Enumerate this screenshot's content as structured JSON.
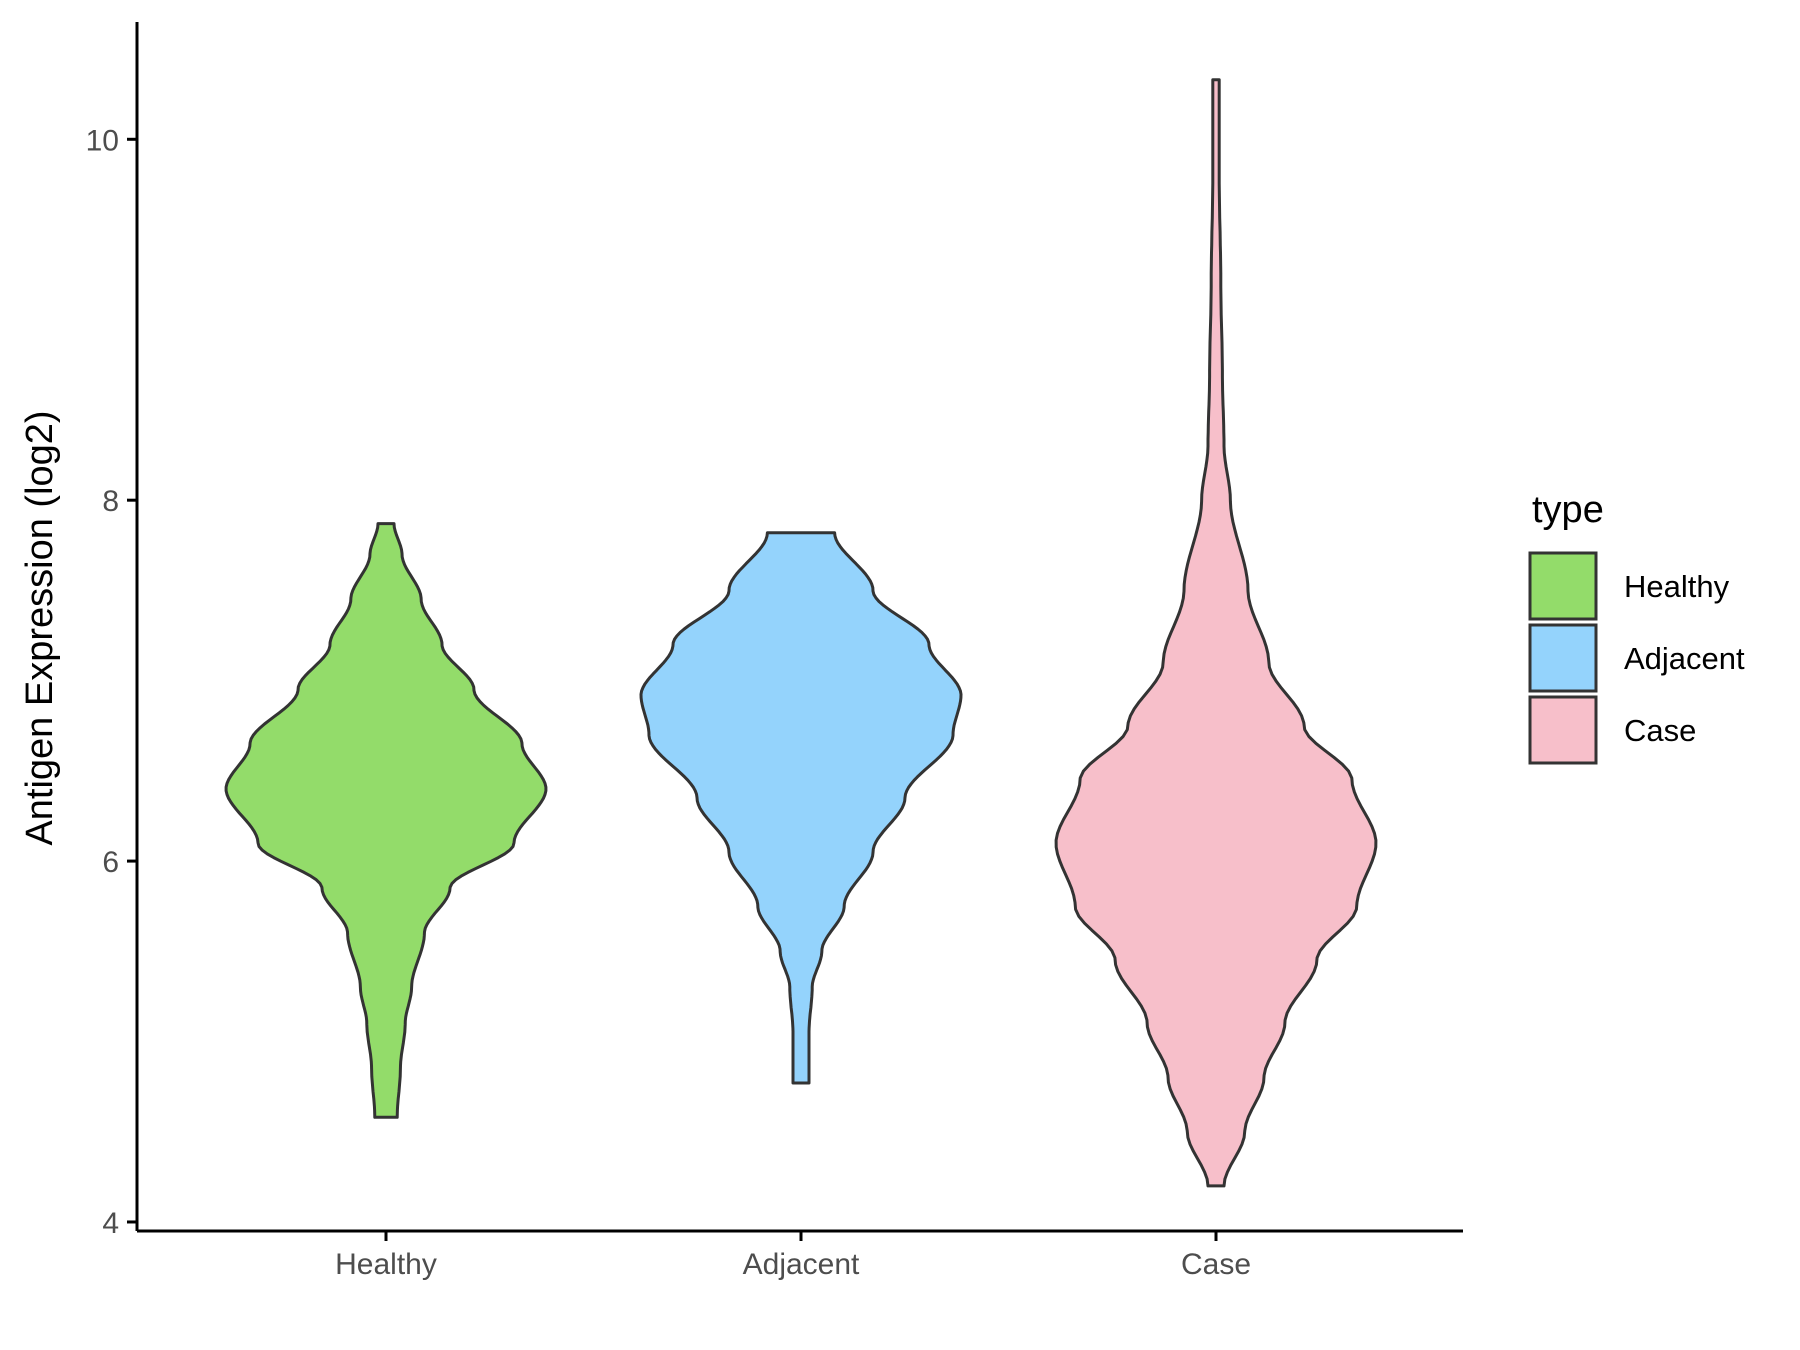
{
  "chart_data": {
    "type": "violin",
    "xlabel": "",
    "ylabel": "Antigen Expression (log2)",
    "ylim": [
      3.95,
      10.65
    ],
    "yticks": [
      4,
      6,
      8,
      10
    ],
    "categories": [
      "Healthy",
      "Adjacent",
      "Case"
    ],
    "legend": {
      "title": "type",
      "position": "right",
      "entries": [
        "Healthy",
        "Adjacent",
        "Case"
      ]
    },
    "grid": false,
    "colors": {
      "Healthy": "#93dc6a",
      "Adjacent": "#94d3fc",
      "Case": "#f7bfca",
      "outline": "#333333"
    },
    "series": [
      {
        "name": "Healthy",
        "min": 4.58,
        "max": 7.87,
        "density_profile": [
          [
            4.58,
            0.07
          ],
          [
            4.85,
            0.09
          ],
          [
            5.1,
            0.12
          ],
          [
            5.3,
            0.16
          ],
          [
            5.6,
            0.24
          ],
          [
            5.85,
            0.4
          ],
          [
            6.1,
            0.8
          ],
          [
            6.4,
            1.0
          ],
          [
            6.65,
            0.85
          ],
          [
            6.95,
            0.55
          ],
          [
            7.2,
            0.35
          ],
          [
            7.45,
            0.22
          ],
          [
            7.7,
            0.1
          ],
          [
            7.87,
            0.05
          ]
        ]
      },
      {
        "name": "Adjacent",
        "min": 4.77,
        "max": 7.82,
        "density_profile": [
          [
            4.77,
            0.05
          ],
          [
            5.05,
            0.05
          ],
          [
            5.3,
            0.07
          ],
          [
            5.5,
            0.13
          ],
          [
            5.75,
            0.27
          ],
          [
            6.05,
            0.45
          ],
          [
            6.35,
            0.65
          ],
          [
            6.7,
            0.95
          ],
          [
            6.92,
            1.0
          ],
          [
            7.2,
            0.8
          ],
          [
            7.5,
            0.45
          ],
          [
            7.82,
            0.21
          ]
        ]
      },
      {
        "name": "Case",
        "min": 4.2,
        "max": 10.33,
        "density_profile": [
          [
            4.2,
            0.05
          ],
          [
            4.5,
            0.18
          ],
          [
            4.8,
            0.3
          ],
          [
            5.1,
            0.43
          ],
          [
            5.45,
            0.63
          ],
          [
            5.75,
            0.88
          ],
          [
            6.1,
            1.0
          ],
          [
            6.45,
            0.85
          ],
          [
            6.75,
            0.55
          ],
          [
            7.1,
            0.33
          ],
          [
            7.5,
            0.2
          ],
          [
            8.0,
            0.09
          ],
          [
            8.3,
            0.05
          ],
          [
            8.7,
            0.04
          ],
          [
            9.2,
            0.03
          ],
          [
            9.8,
            0.02
          ],
          [
            10.33,
            0.02
          ]
        ]
      }
    ]
  }
}
